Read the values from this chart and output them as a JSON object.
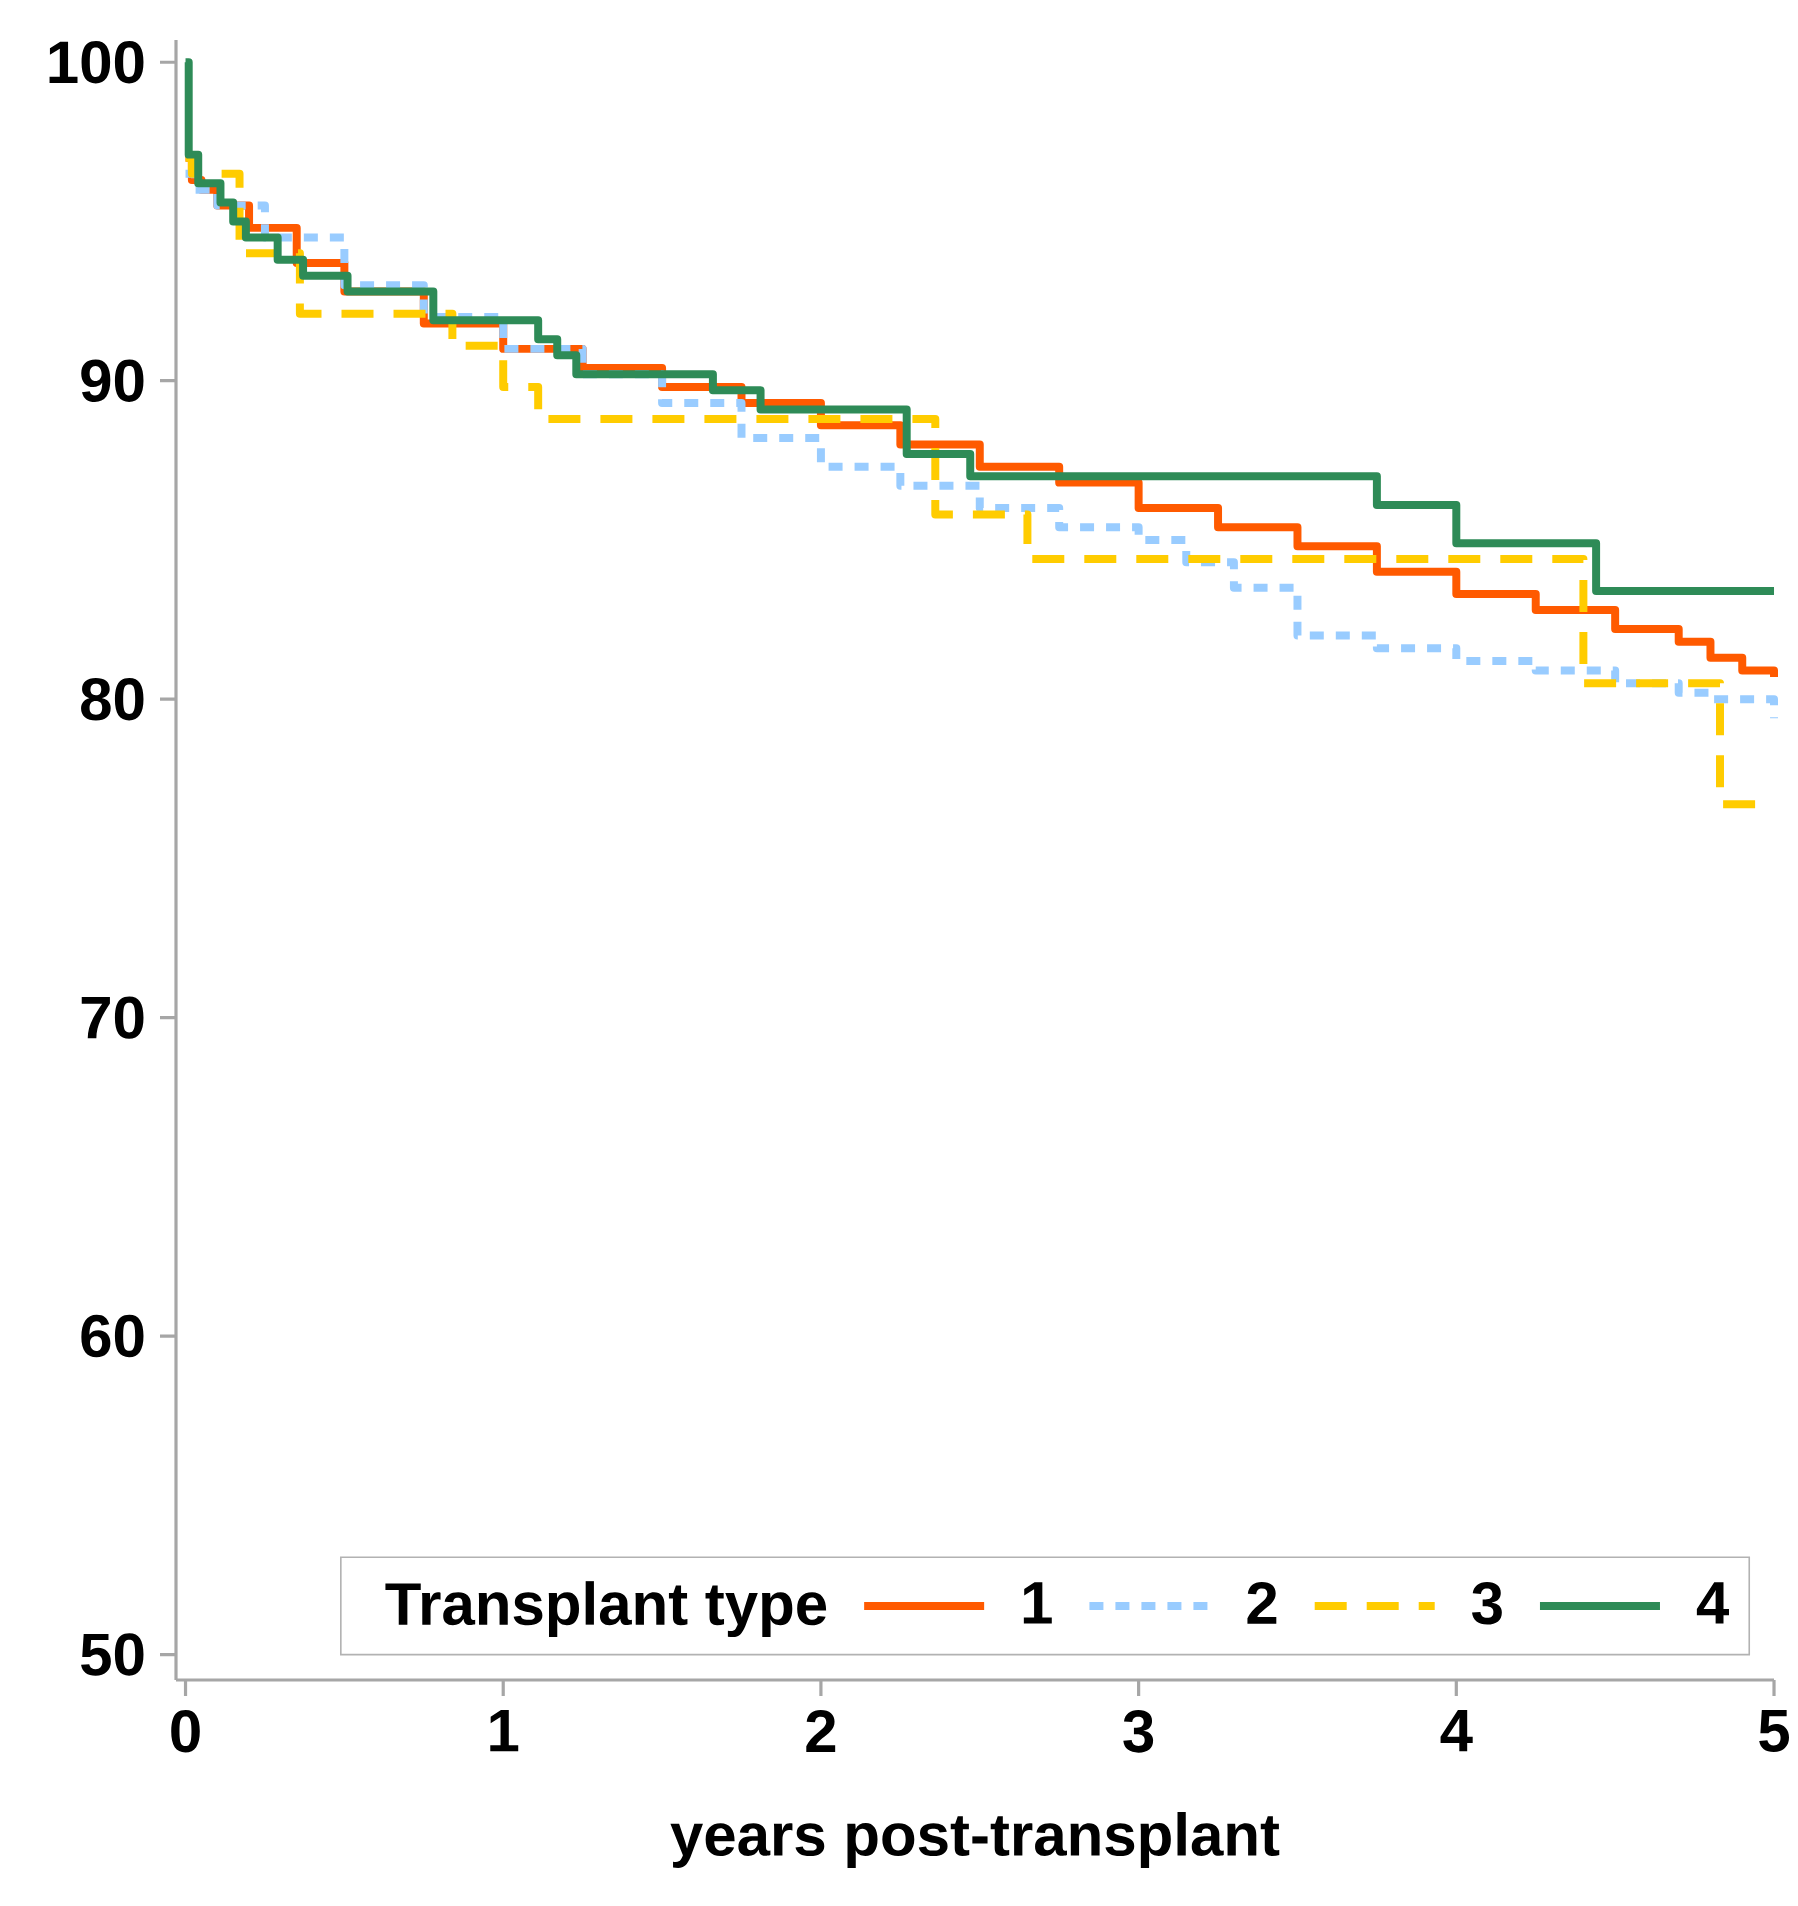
{
  "chart_data": {
    "type": "step",
    "xlabel": "years post-transplant",
    "legend_title": "Transplant type",
    "legend": "bottom right",
    "marker": "none",
    "xlim": [
      -0.03,
      5
    ],
    "ylim": [
      49.2,
      100.7
    ],
    "xticks": [
      0,
      1,
      2,
      3,
      4,
      5
    ],
    "yticks": [
      50,
      60,
      70,
      80,
      90,
      100
    ],
    "series": [
      {
        "name": "1",
        "color": "#ff5a00",
        "line_style": "solid",
        "x": [
          0,
          0.02,
          0.05,
          0.1,
          0.2,
          0.35,
          0.5,
          0.75,
          1,
          1.25,
          1.5,
          1.75,
          2,
          2.25,
          2.5,
          2.75,
          3,
          3.25,
          3.5,
          3.75,
          4,
          4.25,
          4.5,
          4.7,
          4.8,
          4.9,
          5
        ],
        "values": [
          97,
          96.3,
          96,
          95.5,
          94.8,
          93.7,
          92.8,
          91.8,
          91,
          90.4,
          89.8,
          89.3,
          88.6,
          88,
          87.3,
          86.8,
          86,
          85.4,
          84.8,
          84,
          83.3,
          82.8,
          82.2,
          81.8,
          81.3,
          80.9,
          80.7
        ]
      },
      {
        "name": "2",
        "color": "#99ccff",
        "line_style": "dotted",
        "x": [
          0,
          0.03,
          0.1,
          0.25,
          0.5,
          0.75,
          1,
          1.25,
          1.5,
          1.75,
          2,
          2.25,
          2.5,
          2.75,
          3,
          3.15,
          3.3,
          3.5,
          3.75,
          4,
          4.25,
          4.5,
          4.7,
          4.8,
          5
        ],
        "values": [
          96.5,
          96,
          95.5,
          94.5,
          93,
          92,
          91,
          90.2,
          89.3,
          88.2,
          87.3,
          86.7,
          86,
          85.4,
          85,
          84.3,
          83.5,
          82,
          81.6,
          81.2,
          80.9,
          80.5,
          80.2,
          80,
          79.4
        ]
      },
      {
        "name": "3",
        "color": "#ffcc00",
        "line_style": "dashed",
        "x": [
          0,
          0.02,
          0.17,
          0.36,
          0.84,
          1.0,
          1.11,
          2.36,
          2.65,
          4.4,
          4.83,
          5
        ],
        "values": [
          97,
          96.5,
          94.0,
          92.1,
          91.1,
          89.8,
          88.8,
          85.8,
          84.4,
          80.5,
          76.7,
          76.7
        ]
      },
      {
        "name": "4",
        "color": "#2e8b57",
        "line_style": "solid",
        "x": [
          0,
          0.01,
          0.04,
          0.11,
          0.15,
          0.19,
          0.29,
          0.37,
          0.51,
          0.78,
          1.11,
          1.17,
          1.23,
          1.66,
          1.81,
          2.27,
          2.47,
          3.75,
          4.0,
          4.44,
          5
        ],
        "values": [
          100,
          97.1,
          96.2,
          95.6,
          95.0,
          94.5,
          93.8,
          93.3,
          92.8,
          91.9,
          91.3,
          90.8,
          90.2,
          89.7,
          89.1,
          87.7,
          87.0,
          86.1,
          84.9,
          83.4,
          83.4
        ]
      }
    ]
  }
}
